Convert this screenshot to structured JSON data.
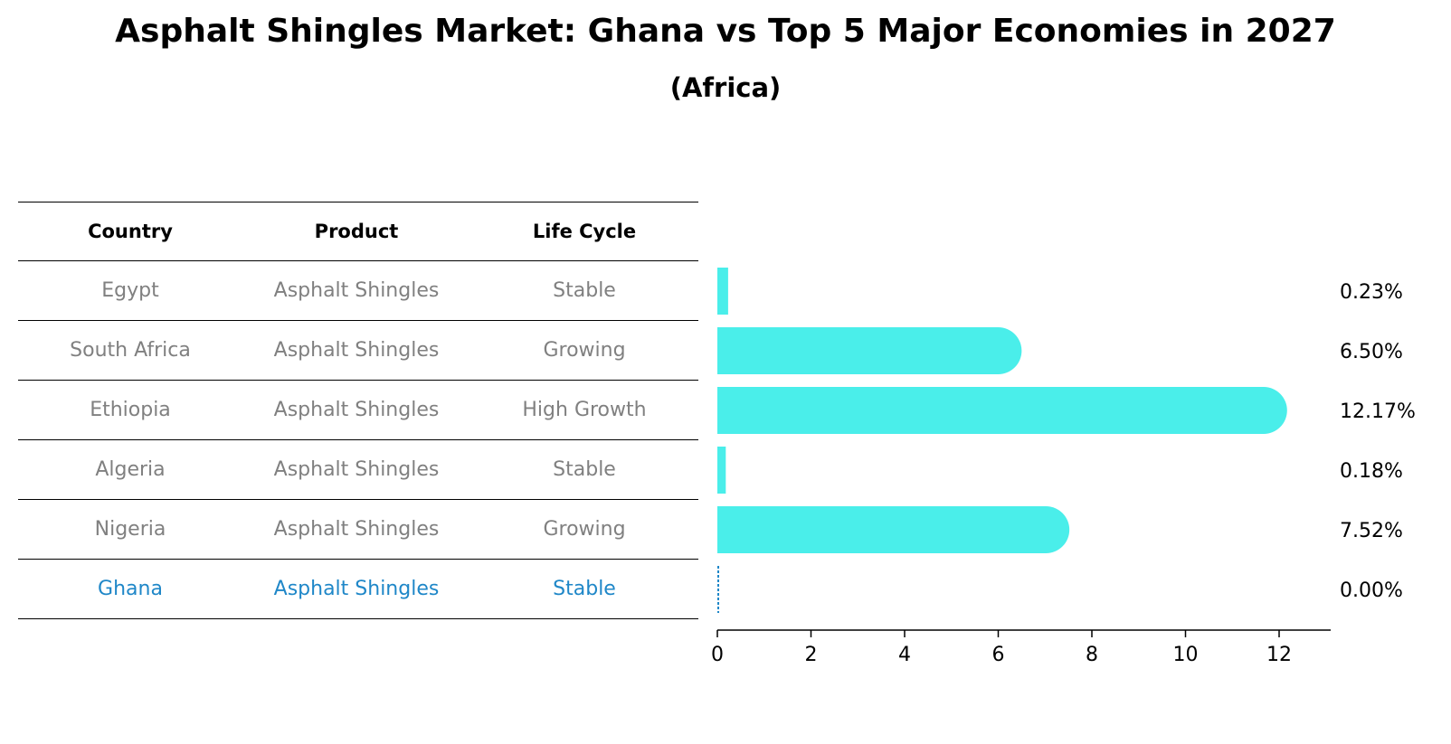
{
  "title": "Asphalt Shingles Market: Ghana vs Top 5 Major Economies in 2027",
  "subtitle": "(Africa)",
  "table": {
    "headers": [
      "Country",
      "Product",
      "Life Cycle"
    ],
    "rows": [
      {
        "country": "Egypt",
        "product": "Asphalt Shingles",
        "life_cycle": "Stable"
      },
      {
        "country": "South Africa",
        "product": "Asphalt Shingles",
        "life_cycle": "Growing"
      },
      {
        "country": "Ethiopia",
        "product": "Asphalt Shingles",
        "life_cycle": "High Growth"
      },
      {
        "country": "Algeria",
        "product": "Asphalt Shingles",
        "life_cycle": "Stable"
      },
      {
        "country": "Nigeria",
        "product": "Asphalt Shingles",
        "life_cycle": "Growing"
      },
      {
        "country": "Ghana",
        "product": "Asphalt Shingles",
        "life_cycle": "Stable"
      }
    ]
  },
  "chart_data": {
    "type": "bar",
    "orientation": "horizontal",
    "categories": [
      "Egypt",
      "South Africa",
      "Ethiopia",
      "Algeria",
      "Nigeria",
      "Ghana"
    ],
    "values": [
      0.23,
      6.5,
      12.17,
      0.18,
      7.52,
      0.0
    ],
    "value_labels": [
      "0.23%",
      "6.50%",
      "12.17%",
      "0.18%",
      "7.52%",
      "0.00%"
    ],
    "highlight": "Ghana",
    "xlim": [
      0,
      12.8
    ],
    "xticks": [
      0,
      2,
      4,
      6,
      8,
      10,
      12
    ],
    "grid": false,
    "colors": {
      "bar": "#4aeeea",
      "highlight": "#1f87c8",
      "muted_text": "#808080"
    }
  }
}
